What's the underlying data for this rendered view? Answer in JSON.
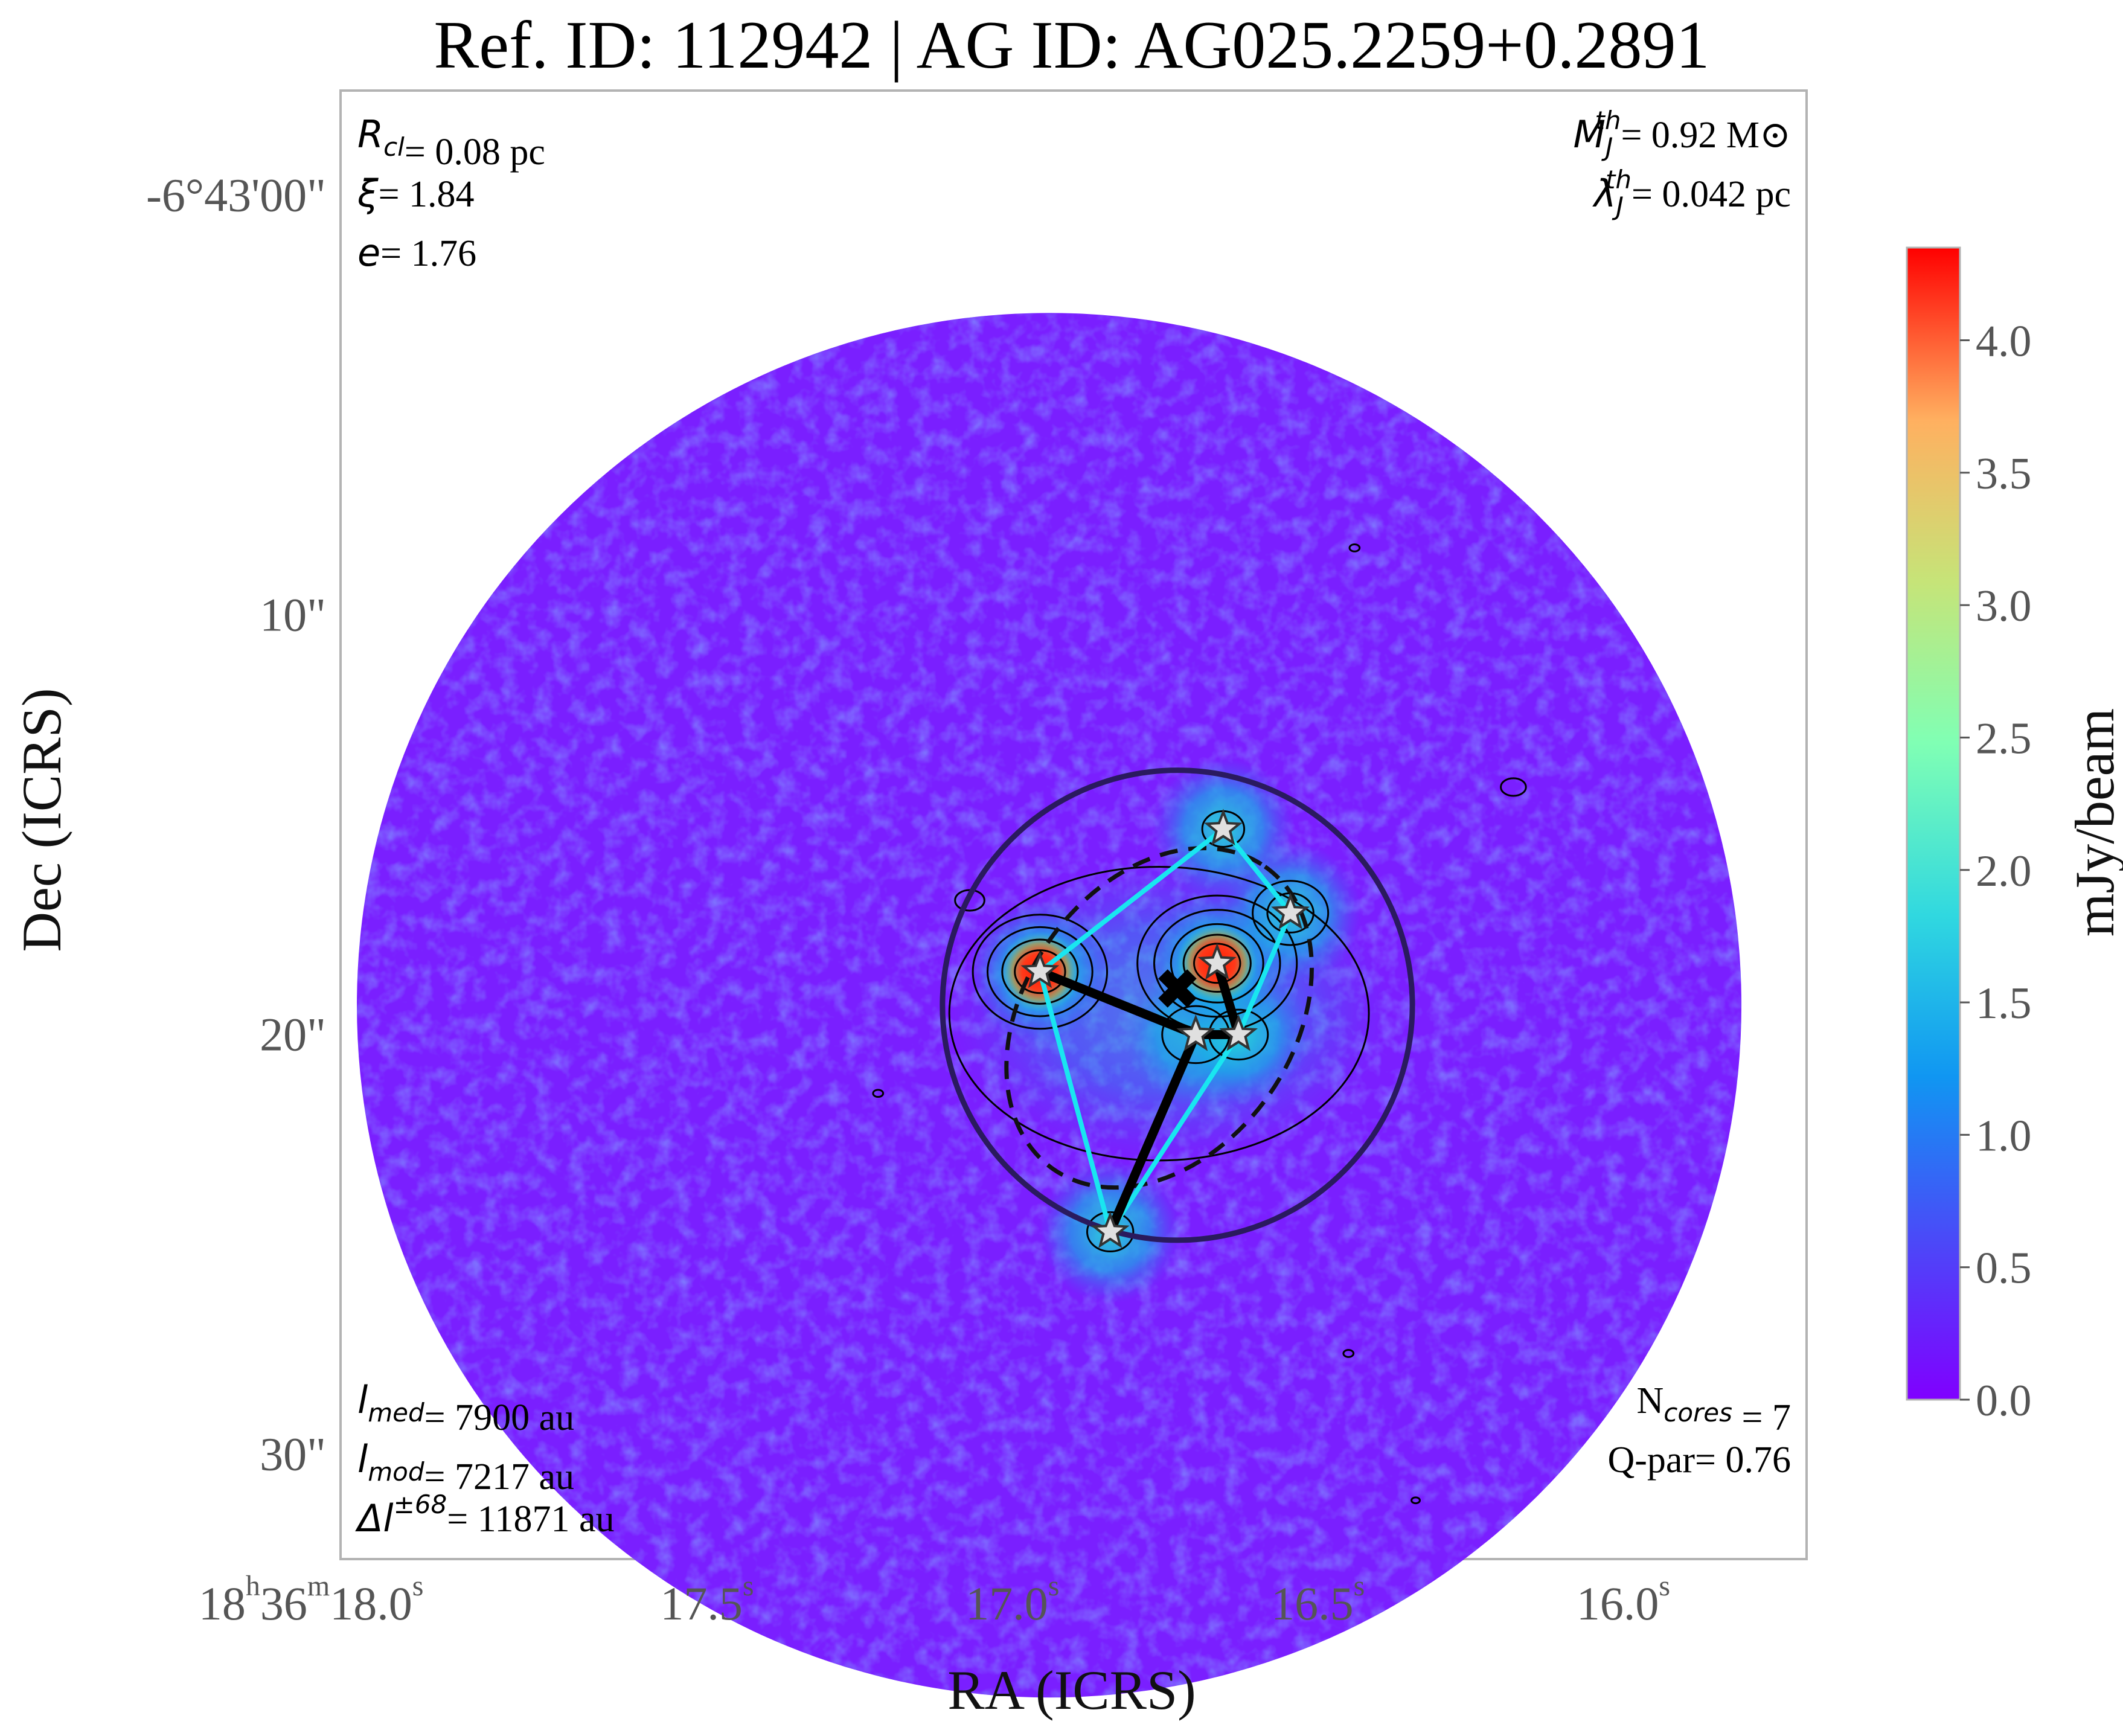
{
  "chart_data": {
    "type": "heatmap",
    "title": "Ref. ID: 112942 | AG ID: AG025.2259+0.2891",
    "xlabel": "RA (ICRS)",
    "ylabel": "Dec (ICRS)",
    "x_ticks": [
      {
        "h": "18",
        "m": "36",
        "s": "18.0",
        "value": 18.0
      },
      {
        "s": "17.5",
        "value": 17.5
      },
      {
        "s": "17.0",
        "value": 17.0
      },
      {
        "s": "16.5",
        "value": 16.5
      },
      {
        "s": "16.0",
        "value": 16.0
      }
    ],
    "y_ticks": [
      {
        "label": "-6°43'00\"",
        "value": 0
      },
      {
        "label": "10\"",
        "value": 10
      },
      {
        "label": "20\"",
        "value": 20
      },
      {
        "label": "30\"",
        "value": 30
      }
    ],
    "xlim": [
      18.1,
      15.7
    ],
    "ylim": [
      -2.5,
      32.5
    ],
    "colorbar": {
      "label": "mJy/beam",
      "range": [
        0.0,
        4.35
      ],
      "ticks": [
        "0.0",
        "0.5",
        "1.0",
        "1.5",
        "2.0",
        "2.5",
        "3.0",
        "3.5",
        "4.0"
      ],
      "colormap": "rainbow"
    },
    "field_of_view": {
      "center": [
        16.94,
        19.3
      ],
      "radius_arcsec": 16.5
    },
    "clump_circle": {
      "center": [
        16.73,
        19.3
      ],
      "radius_arcsec": 5.6
    },
    "clump_ellipse": {
      "center": [
        16.76,
        19.6
      ],
      "semi_major_arcsec": 4.4,
      "semi_minor_arcsec": 3.2,
      "angle_deg": 55
    },
    "cores": [
      {
        "id": 1,
        "ra": 16.955,
        "dec": 18.5
      },
      {
        "id": 2,
        "ra": 16.84,
        "dec": 24.7
      },
      {
        "id": 3,
        "ra": 16.7,
        "dec": 20.0
      },
      {
        "id": 4,
        "ra": 16.63,
        "dec": 20.0
      },
      {
        "id": 5,
        "ra": 16.665,
        "dec": 18.3
      },
      {
        "id": 6,
        "ra": 16.545,
        "dec": 17.1
      },
      {
        "id": 7,
        "ra": 16.655,
        "dec": 15.1
      }
    ],
    "centroid": {
      "ra": 16.73,
      "dec": 18.9
    },
    "mst_edges": [
      [
        1,
        3
      ],
      [
        3,
        2
      ],
      [
        3,
        4
      ],
      [
        4,
        5
      ]
    ],
    "hull_edges": [
      [
        1,
        7
      ],
      [
        7,
        6
      ],
      [
        6,
        4
      ],
      [
        4,
        2
      ],
      [
        2,
        1
      ]
    ],
    "annotations": {
      "top_left": [
        {
          "sym": "R",
          "sub": "cl",
          "text": "= 0.08 pc"
        },
        {
          "sym": "ξ",
          "sub": "",
          "text": "= 1.84"
        },
        {
          "sym": "e",
          "sub": "",
          "text": "= 1.76"
        }
      ],
      "top_right": [
        {
          "sym": "M",
          "sub": "J",
          "sup": "th",
          "text": "= 0.92 M⊙"
        },
        {
          "sym": "λ",
          "sub": "J",
          "sup": "th",
          "text": "= 0.042 pc"
        }
      ],
      "bottom_left": [
        {
          "sym": "l",
          "sub": "med",
          "text": "= 7900 au"
        },
        {
          "sym": "l",
          "sub": "mod",
          "text": "= 7217 au"
        },
        {
          "sym": "Δl",
          "sup": "±68",
          "text": "= 11871 au"
        }
      ],
      "bottom_right": [
        {
          "sym": "N",
          "sub": "cores",
          "text": " = 7"
        },
        {
          "sym": "Q-par",
          "text": "= 0.76"
        }
      ]
    },
    "colors": {
      "background_map": "#7a1fff",
      "hull": "#19e6f0",
      "mst": "#000000",
      "clump_circle": "#2a1a5e",
      "frame": "#b3b3b3"
    }
  }
}
